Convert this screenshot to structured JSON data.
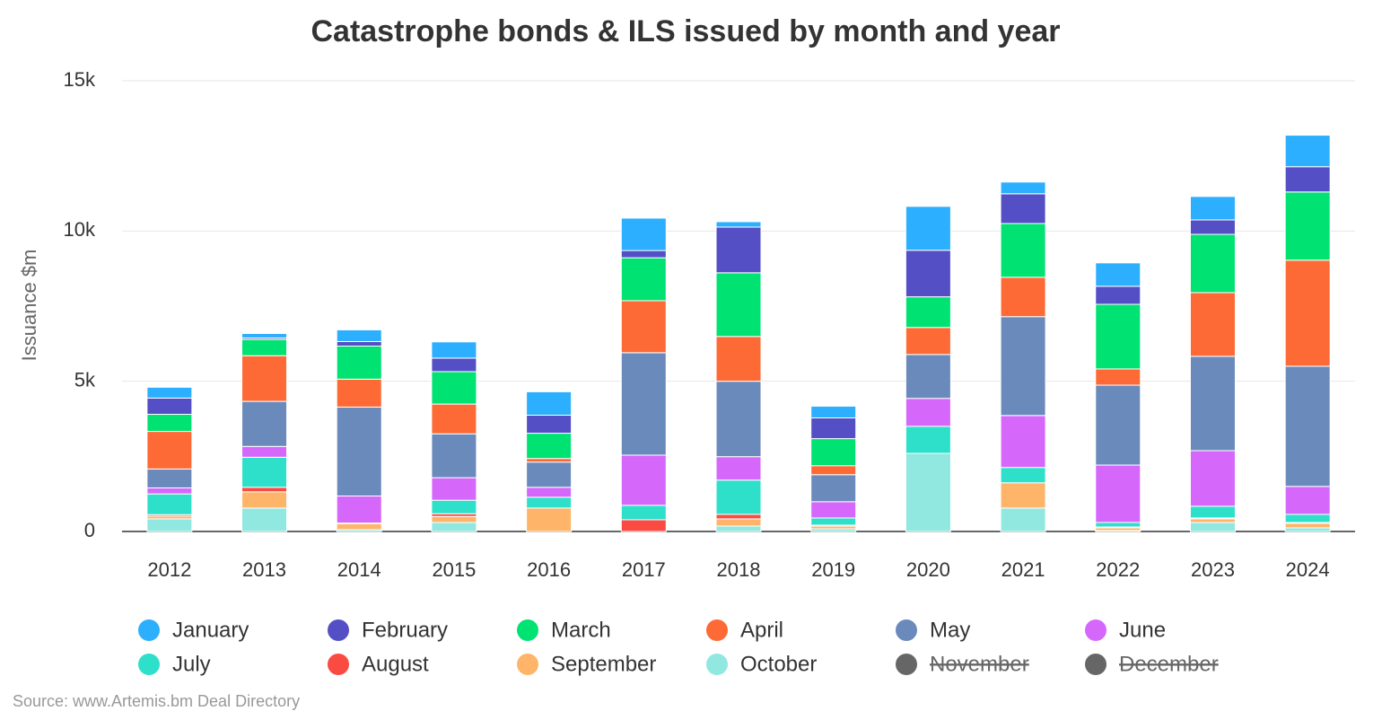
{
  "chart_data": {
    "type": "stacked-bar",
    "title": "Catastrophe bonds & ILS issued by month and year",
    "y_label": "Issuance $m",
    "source": "Source: www.Artemis.bm Deal Directory",
    "categories": [
      "2012",
      "2013",
      "2014",
      "2015",
      "2016",
      "2017",
      "2018",
      "2019",
      "2020",
      "2021",
      "2022",
      "2023",
      "2024"
    ],
    "ylim": [
      0,
      15000
    ],
    "yticks": [
      0,
      {
        "value": 5000,
        "label": "5k"
      },
      {
        "value": 10000,
        "label": "10k"
      },
      {
        "value": 15000,
        "label": "15k"
      }
    ],
    "grid": true,
    "legend": "bottom",
    "series": [
      {
        "name": "January",
        "color": "#2caffe",
        "values": [
          360,
          150,
          390,
          540,
          780,
          1080,
          180,
          390,
          1460,
          390,
          780,
          780,
          1050
        ]
      },
      {
        "name": "February",
        "color": "#544fc5",
        "values": [
          540,
          50,
          150,
          450,
          600,
          240,
          1520,
          690,
          1550,
          990,
          600,
          480,
          840
        ]
      },
      {
        "name": "March",
        "color": "#00e272",
        "values": [
          570,
          540,
          1100,
          1080,
          840,
          1430,
          2120,
          900,
          1020,
          1790,
          2150,
          1940,
          2270
        ]
      },
      {
        "name": "April",
        "color": "#fe6a35",
        "values": [
          1250,
          1520,
          930,
          990,
          120,
          1730,
          1490,
          300,
          900,
          1310,
          540,
          2120,
          3530
        ]
      },
      {
        "name": "May",
        "color": "#6b8abc",
        "values": [
          630,
          1500,
          2960,
          1460,
          840,
          3410,
          2510,
          900,
          1460,
          3290,
          2660,
          3140,
          4000
        ]
      },
      {
        "name": "June",
        "color": "#d568fb",
        "values": [
          200,
          360,
          900,
          750,
          330,
          1670,
          780,
          540,
          930,
          1730,
          1910,
          1850,
          930
        ]
      },
      {
        "name": "July",
        "color": "#2ee0ca",
        "values": [
          690,
          1000,
          20,
          450,
          360,
          480,
          1140,
          240,
          900,
          510,
          150,
          390,
          270
        ]
      },
      {
        "name": "August",
        "color": "#fa4b42",
        "values": [
          50,
          150,
          0,
          90,
          0,
          390,
          150,
          30,
          0,
          0,
          30,
          30,
          30
        ]
      },
      {
        "name": "September",
        "color": "#feb56a",
        "values": [
          90,
          540,
          200,
          200,
          780,
          0,
          240,
          90,
          0,
          840,
          90,
          120,
          150
        ]
      },
      {
        "name": "October",
        "color": "#91e8e1",
        "values": [
          420,
          780,
          60,
          300,
          0,
          0,
          180,
          90,
          2600,
          780,
          30,
          300,
          120
        ]
      },
      {
        "name": "November",
        "color": "#666666",
        "hidden": true,
        "values": [
          null,
          null,
          null,
          null,
          null,
          null,
          null,
          null,
          null,
          null,
          null,
          null,
          null
        ]
      },
      {
        "name": "December",
        "color": "#666666",
        "hidden": true,
        "values": [
          null,
          null,
          null,
          null,
          null,
          null,
          null,
          null,
          null,
          null,
          null,
          null,
          null
        ]
      }
    ]
  }
}
